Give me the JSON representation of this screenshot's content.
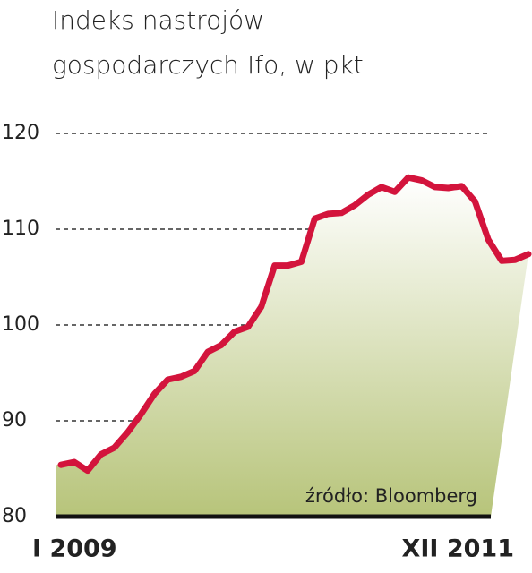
{
  "chart_data": {
    "type": "area-line",
    "title": [
      "Indeks nastrojów",
      "gospodarczych Ifo, w pkt"
    ],
    "source": "źródło: Bloomberg",
    "categories": [
      "I 2009",
      null,
      null,
      null,
      null,
      null,
      null,
      null,
      null,
      null,
      null,
      null,
      null,
      null,
      null,
      null,
      null,
      null,
      null,
      null,
      null,
      null,
      null,
      null,
      null,
      null,
      null,
      null,
      null,
      null,
      null,
      null,
      null,
      null,
      null,
      "XII 2011"
    ],
    "values": [
      85.4,
      85.7,
      84.8,
      86.5,
      87.2,
      88.8,
      90.7,
      92.8,
      94.3,
      94.6,
      95.2,
      97.2,
      97.9,
      99.3,
      99.8,
      101.9,
      106.2,
      106.2,
      106.6,
      111.1,
      111.6,
      111.7,
      112.5,
      113.6,
      114.4,
      113.9,
      115.4,
      115.1,
      114.4,
      114.3,
      114.5,
      112.9,
      108.9,
      106.7,
      106.8,
      107.4
    ],
    "color": "#d3143c",
    "ylim": [
      80,
      120
    ],
    "yticks": [
      80,
      90,
      100,
      110,
      120
    ],
    "grid": true
  }
}
